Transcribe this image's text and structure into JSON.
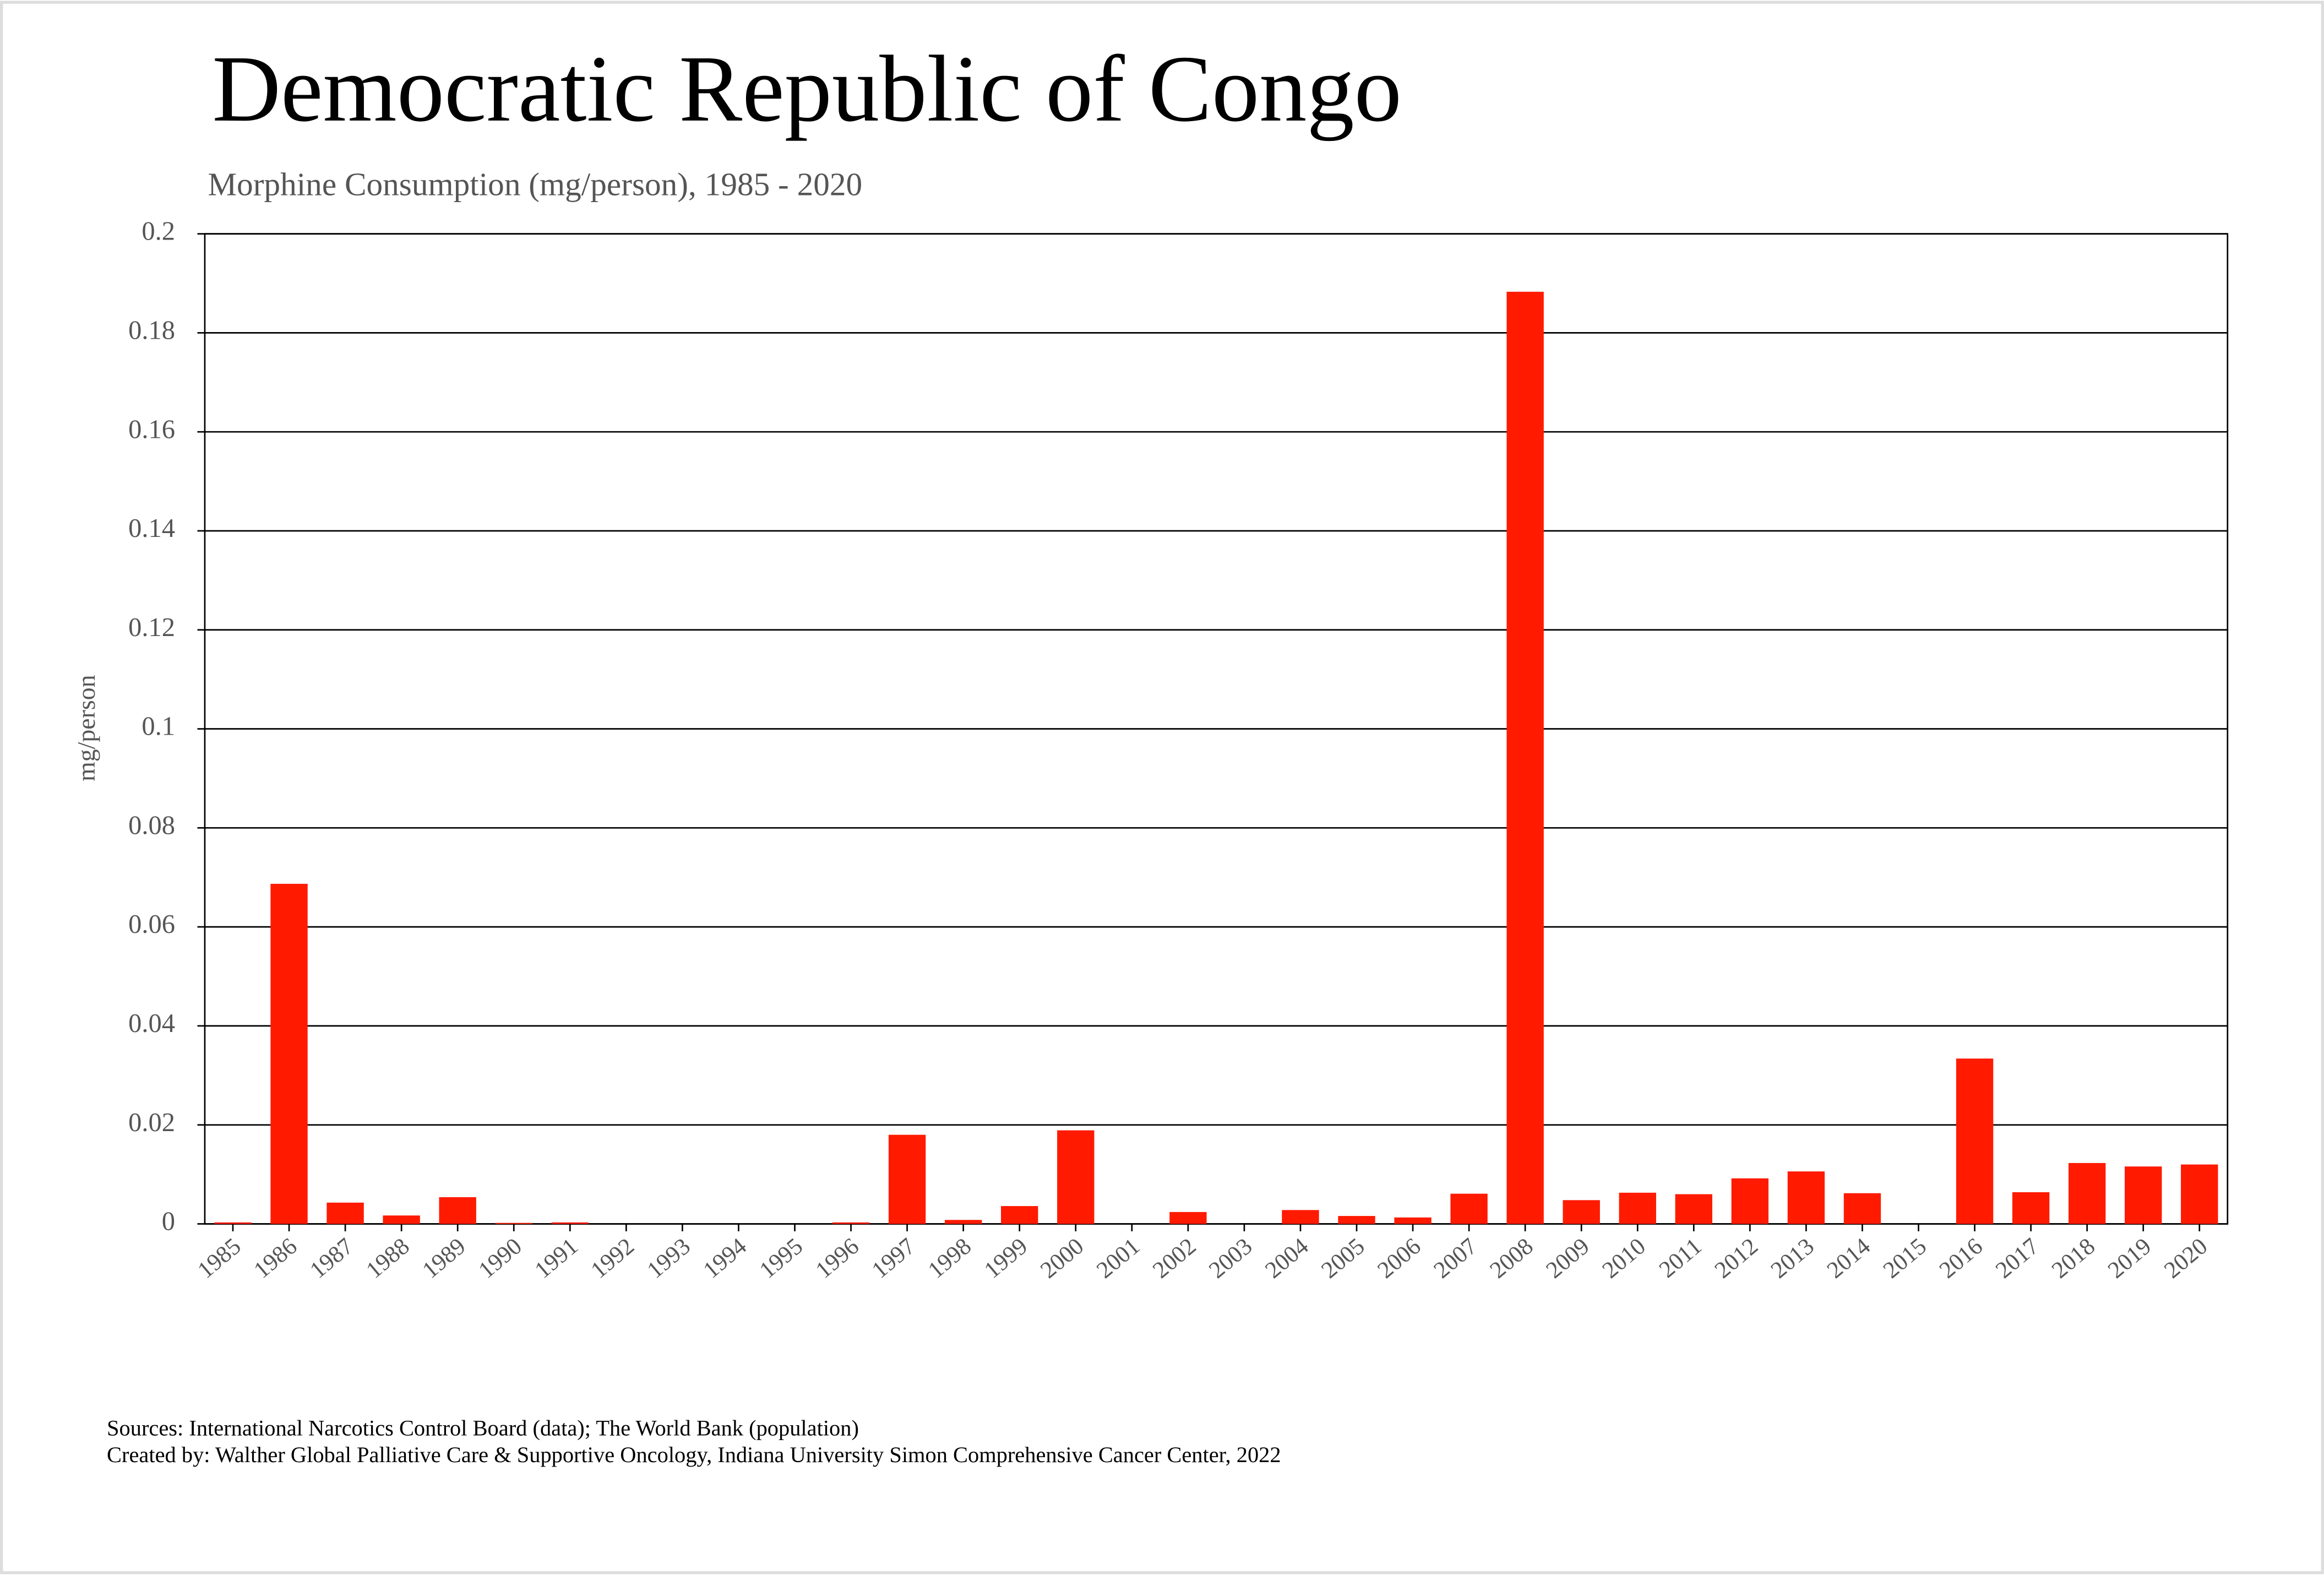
{
  "chart_data": {
    "type": "bar",
    "title": "Democratic Republic of Congo",
    "subtitle": "Morphine Consumption (mg/person), 1985 - 2020",
    "y_label": "mg/person",
    "categories": [
      "1985",
      "1986",
      "1987",
      "1988",
      "1989",
      "1990",
      "1991",
      "1992",
      "1993",
      "1994",
      "1995",
      "1996",
      "1997",
      "1998",
      "1999",
      "2000",
      "2001",
      "2002",
      "2003",
      "2004",
      "2005",
      "2006",
      "2007",
      "2008",
      "2009",
      "2010",
      "2011",
      "2012",
      "2013",
      "2014",
      "2015",
      "2016",
      "2017",
      "2018",
      "2019",
      "2020"
    ],
    "values": [
      0.0003,
      0.0687,
      0.0043,
      0.0017,
      0.0054,
      0.0002,
      0.0003,
      0,
      0,
      0,
      0,
      0.0003,
      0.018,
      0.0008,
      0.0036,
      0.0189,
      0,
      0.0024,
      0,
      0.0028,
      0.0016,
      0.0013,
      0.0061,
      0.1883,
      0.0048,
      0.0063,
      0.006,
      0.0092,
      0.0106,
      0.0062,
      0,
      0.0334,
      0.0064,
      0.0123,
      0.0116,
      0.012
    ],
    "color": "#ff1a00",
    "ylim": [
      0,
      0.2
    ],
    "yticks": [
      0,
      0.02,
      0.04,
      0.06,
      0.08,
      0.1,
      0.12,
      0.14,
      0.16,
      0.18,
      0.2
    ],
    "grid": true,
    "notes": [
      "Sources: International Narcotics Control Board (data); The World Bank (population)",
      "Created by: Walther  Global Palliative Care & Supportive Oncology, Indiana University Simon Comprehensive Cancer Center, 2022"
    ]
  }
}
